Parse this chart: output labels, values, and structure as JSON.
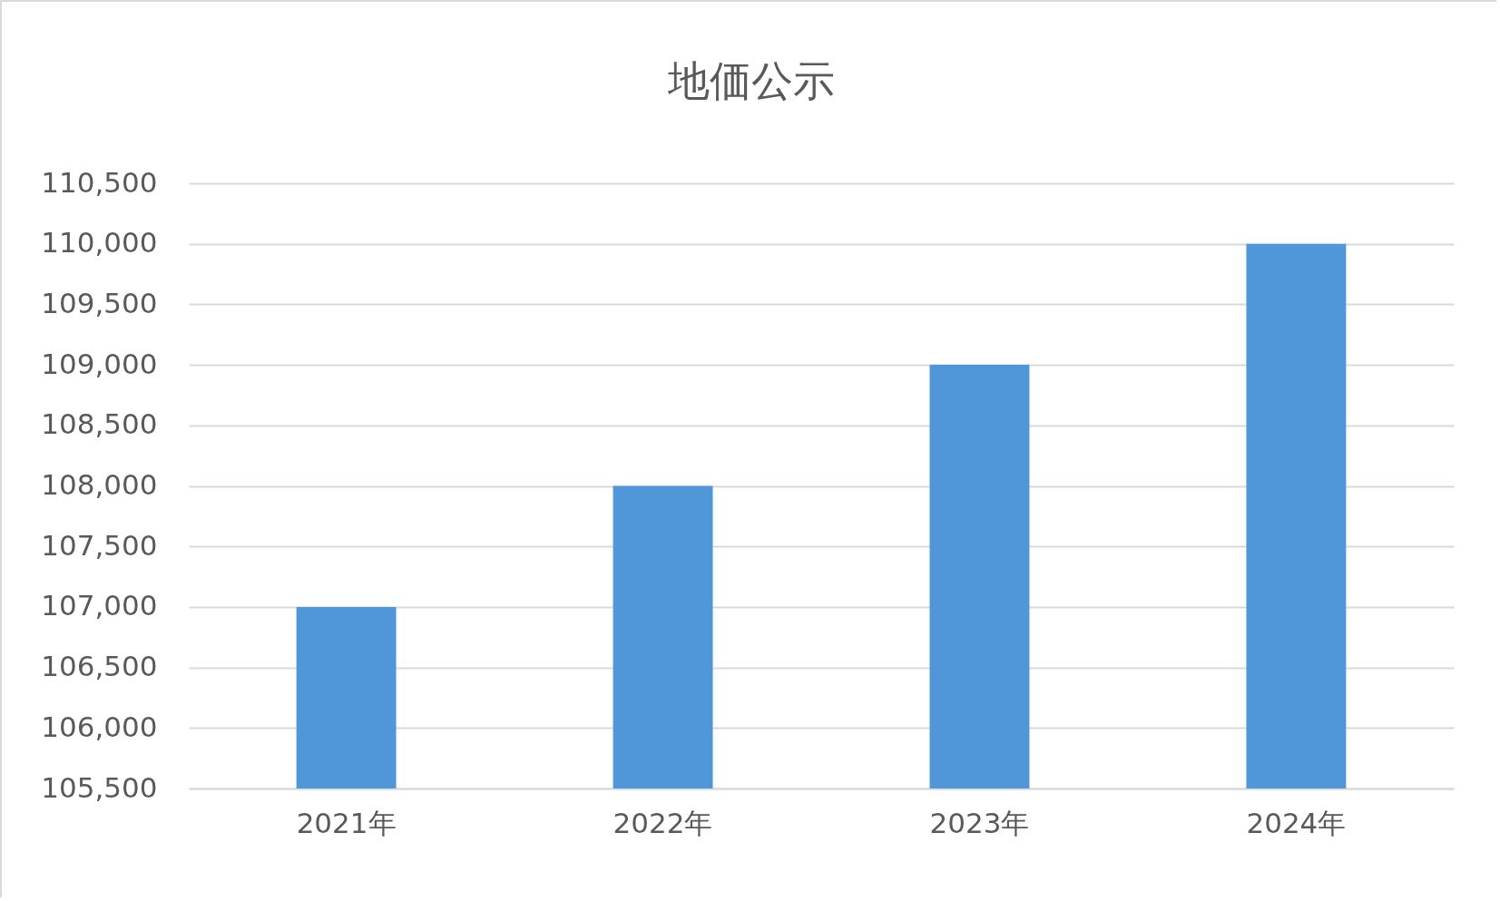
{
  "chart_data": {
    "type": "bar",
    "title": "地価公示",
    "categories": [
      "2021年",
      "2022年",
      "2023年",
      "2024年"
    ],
    "values": [
      107000,
      108000,
      109000,
      110000
    ],
    "color": "#4f97d9",
    "ylim": [
      105500,
      110500
    ],
    "yticks": [
      {
        "value": 105500,
        "label": "105,500"
      },
      {
        "value": 106000,
        "label": "106,000"
      },
      {
        "value": 106500,
        "label": "106,500"
      },
      {
        "value": 107000,
        "label": "107,000"
      },
      {
        "value": 107500,
        "label": "107,500"
      },
      {
        "value": 108000,
        "label": "108,000"
      },
      {
        "value": 108500,
        "label": "108,500"
      },
      {
        "value": 109000,
        "label": "109,000"
      },
      {
        "value": 109500,
        "label": "109,500"
      },
      {
        "value": 110000,
        "label": "110,000"
      },
      {
        "value": 110500,
        "label": "110,500"
      }
    ],
    "grid": "y"
  }
}
